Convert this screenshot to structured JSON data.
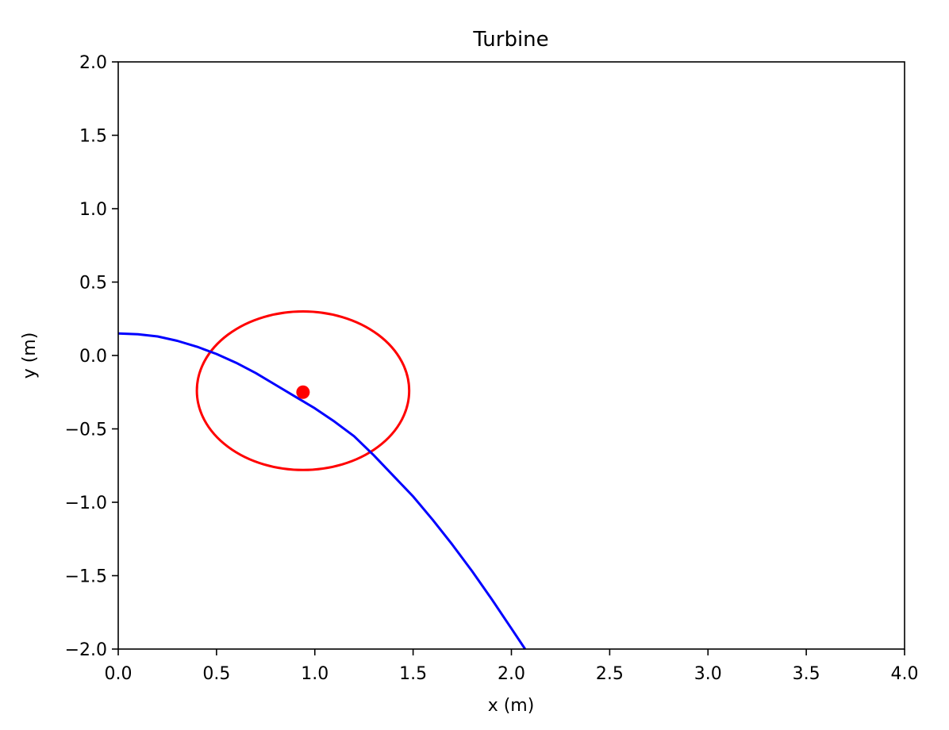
{
  "chart_data": {
    "type": "line",
    "title": "Turbine",
    "xlabel": "x (m)",
    "ylabel": "y (m)",
    "xlim": [
      0.0,
      4.0
    ],
    "ylim": [
      -2.0,
      2.0
    ],
    "x_ticks": [
      0.0,
      0.5,
      1.0,
      1.5,
      2.0,
      2.5,
      3.0,
      3.5,
      4.0
    ],
    "x_tick_labels": [
      "0.0",
      "0.5",
      "1.0",
      "1.5",
      "2.0",
      "2.5",
      "3.0",
      "3.5",
      "4.0"
    ],
    "y_ticks": [
      -2.0,
      -1.5,
      -1.0,
      -0.5,
      0.0,
      0.5,
      1.0,
      1.5,
      2.0
    ],
    "y_tick_labels": [
      "−2.0",
      "−1.5",
      "−1.0",
      "−0.5",
      "0.0",
      "0.5",
      "1.0",
      "1.5",
      "2.0"
    ],
    "grid": false,
    "series": [
      {
        "color": "#0000ff",
        "x": [
          0.0,
          0.1,
          0.2,
          0.3,
          0.4,
          0.5,
          0.6,
          0.7,
          0.8,
          0.9,
          1.0,
          1.1,
          1.2,
          1.3,
          1.4,
          1.5,
          1.6,
          1.7,
          1.8,
          1.9,
          2.0,
          2.07
        ],
        "y": [
          0.15,
          0.145,
          0.13,
          0.1,
          0.06,
          0.01,
          -0.05,
          -0.12,
          -0.2,
          -0.28,
          -0.36,
          -0.45,
          -0.55,
          -0.68,
          -0.82,
          -0.96,
          -1.12,
          -1.29,
          -1.47,
          -1.66,
          -1.86,
          -2.0
        ]
      }
    ],
    "circle": {
      "color": "#ff0000",
      "center": [
        0.94,
        -0.24
      ],
      "rx": 0.54,
      "ry": 0.54
    },
    "point": {
      "color": "#ff0000",
      "x": 0.94,
      "y": -0.25
    }
  }
}
